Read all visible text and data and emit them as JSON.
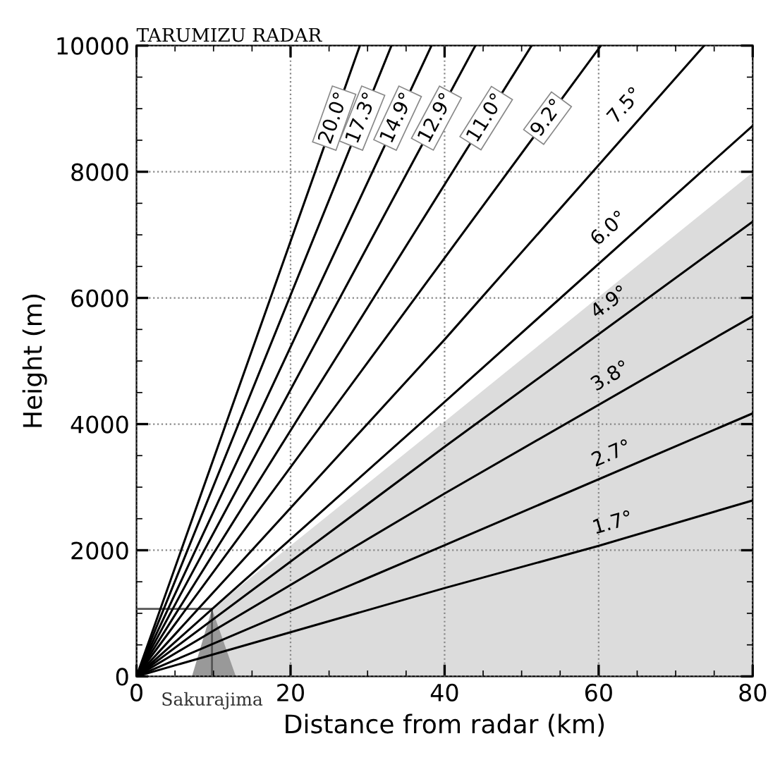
{
  "chart_data": {
    "type": "line",
    "title": "TARUMIZU RADAR",
    "xlabel": "Distance from radar (km)",
    "ylabel": "Height (m)",
    "xlim": [
      0,
      80
    ],
    "ylim": [
      0,
      10000
    ],
    "xticks": [
      0,
      20,
      40,
      60,
      80
    ],
    "yticks": [
      0,
      2000,
      4000,
      6000,
      8000,
      10000
    ],
    "grid": true,
    "marker": "none",
    "line_style": "solid",
    "series": [
      {
        "color": "#000000",
        "x": [
          0,
          29.0
        ],
        "values": [
          0,
          10000
        ]
      },
      {
        "color": "#000000",
        "x": [
          0,
          33.1
        ],
        "values": [
          0,
          10000
        ]
      },
      {
        "color": "#000000",
        "x": [
          0,
          38.3
        ],
        "values": [
          0,
          10000
        ]
      },
      {
        "color": "#000000",
        "x": [
          0,
          44.0
        ],
        "values": [
          0,
          10000
        ]
      },
      {
        "color": "#000000",
        "x": [
          0,
          51.3
        ],
        "values": [
          0,
          10000
        ]
      },
      {
        "color": "#000000",
        "x": [
          0,
          60.3
        ],
        "values": [
          0,
          10000
        ]
      },
      {
        "color": "#000000",
        "x": [
          0,
          40,
          73.7
        ],
        "values": [
          0,
          5340,
          10000
        ]
      },
      {
        "color": "#000000",
        "x": [
          0,
          40,
          80
        ],
        "values": [
          0,
          4350,
          8730
        ]
      },
      {
        "color": "#000000",
        "x": [
          0,
          40,
          80
        ],
        "values": [
          0,
          3640,
          7210
        ]
      },
      {
        "color": "#000000",
        "x": [
          0,
          40,
          80
        ],
        "values": [
          0,
          2900,
          5710
        ]
      },
      {
        "color": "#000000",
        "x": [
          0,
          40,
          80
        ],
        "values": [
          0,
          2080,
          4170
        ]
      },
      {
        "color": "#000000",
        "x": [
          0,
          40,
          60,
          80
        ],
        "values": [
          0,
          1400,
          2070,
          2790
        ]
      },
      {
        "type": "area",
        "color": "#dcdcdc",
        "x": [
          9.8,
          40,
          80
        ],
        "values": [
          1070,
          4040,
          7990
        ]
      },
      {
        "type": "area",
        "color": "#999999",
        "x": [
          7.2,
          9.8,
          12.9
        ],
        "values": [
          0,
          1070,
          0
        ]
      }
    ],
    "annotations": [
      "20.0°",
      "17.3°",
      "14.9°",
      "12.9°",
      "11.0°",
      "9.2°",
      "7.5°",
      "6.0°",
      "4.9°",
      "3.8°",
      "2.7°",
      "1.7°",
      {
        "text": "Sakurajima",
        "x": 9.8,
        "y": 0
      }
    ]
  }
}
